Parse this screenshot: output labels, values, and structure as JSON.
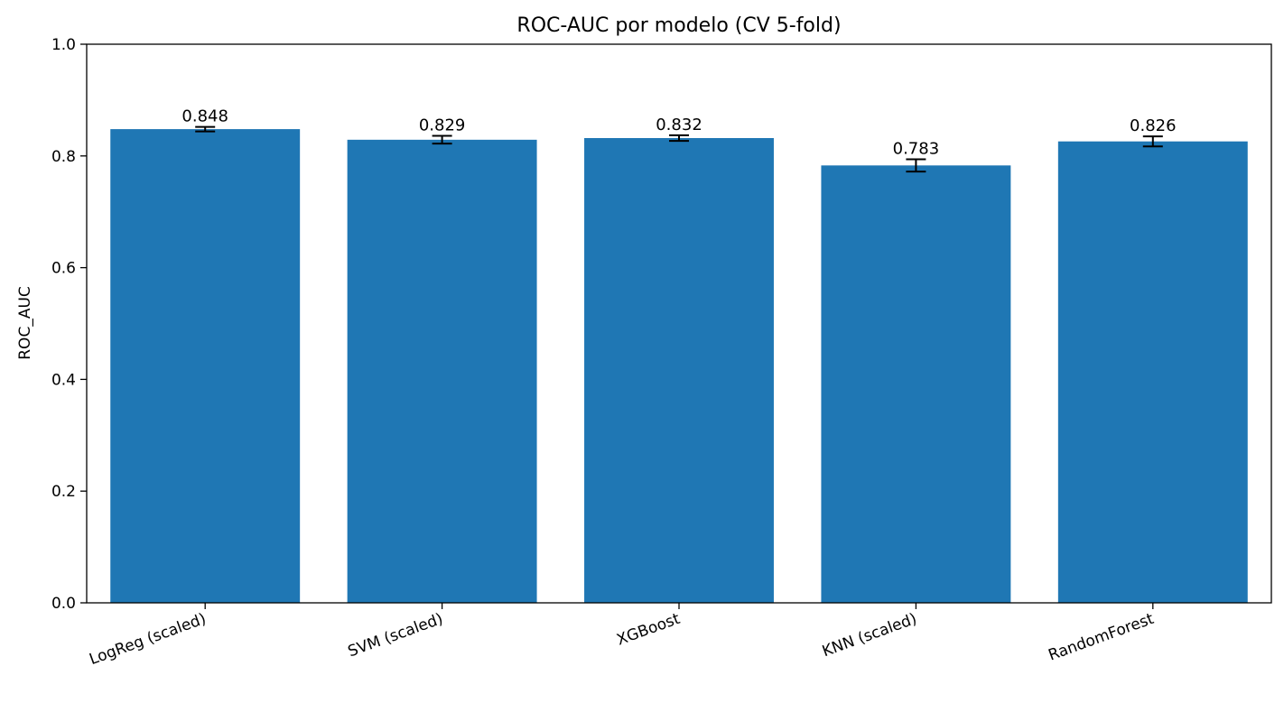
{
  "chart_data": {
    "type": "bar",
    "title": "ROC-AUC por modelo (CV 5-fold)",
    "xlabel": "",
    "ylabel": "ROC_AUC",
    "categories": [
      "LogReg (scaled)",
      "SVM (scaled)",
      "XGBoost",
      "KNN (scaled)",
      "RandomForest"
    ],
    "values": [
      0.848,
      0.829,
      0.832,
      0.783,
      0.826
    ],
    "value_labels": [
      "0.848",
      "0.829",
      "0.832",
      "0.783",
      "0.826"
    ],
    "error": [
      0.004,
      0.007,
      0.005,
      0.011,
      0.009
    ],
    "ylim": [
      0,
      1.0
    ],
    "yticks": [
      0.0,
      0.2,
      0.4,
      0.6,
      0.8,
      1.0
    ],
    "ytick_labels": [
      "0.0",
      "0.2",
      "0.4",
      "0.6",
      "0.8",
      "1.0"
    ],
    "bar_color": "#1f77b4",
    "error_color": "#000000",
    "grid": false
  }
}
